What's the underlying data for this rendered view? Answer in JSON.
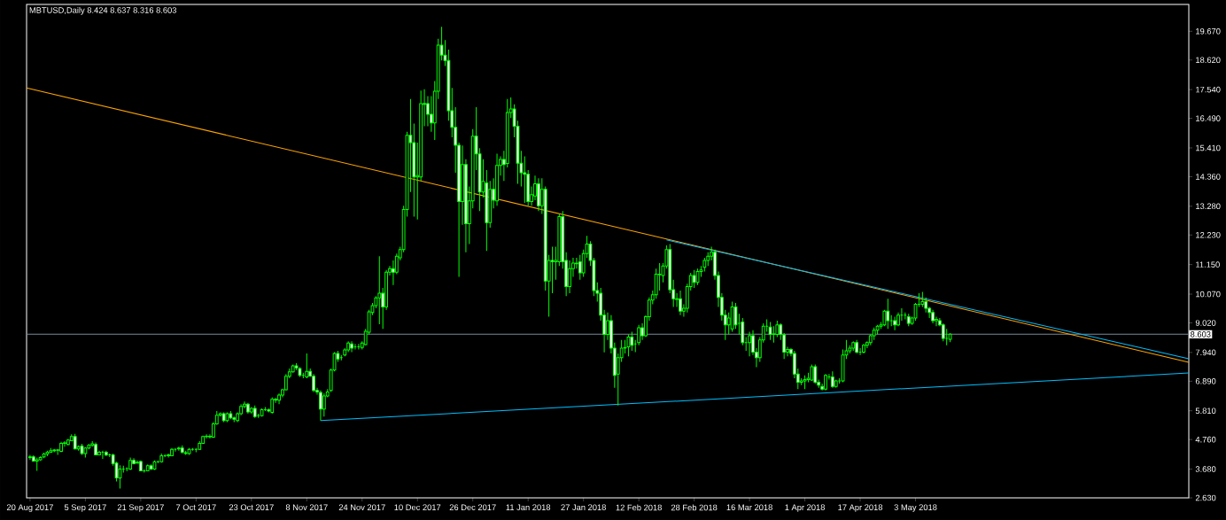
{
  "chart_data": {
    "type": "candlestick",
    "title": "MBTUSD,Daily  8.424 8.637 8.316 8.603",
    "color": "#00ff00",
    "xlim": [
      "2017-08-19",
      "2018-07-21"
    ],
    "ylim": [
      2.63,
      20.65
    ],
    "xticks": [
      {
        "value": "2017-08-20",
        "label": "20 Aug 2017"
      },
      {
        "value": "2017-09-05",
        "label": "5 Sep 2017"
      },
      {
        "value": "2017-09-21",
        "label": "21 Sep 2017"
      },
      {
        "value": "2017-10-07",
        "label": "7 Oct 2017"
      },
      {
        "value": "2017-10-23",
        "label": "23 Oct 2017"
      },
      {
        "value": "2017-11-08",
        "label": "8 Nov 2017"
      },
      {
        "value": "2017-11-24",
        "label": "24 Nov 2017"
      },
      {
        "value": "2017-12-10",
        "label": "10 Dec 2017"
      },
      {
        "value": "2017-12-26",
        "label": "26 Dec 2017"
      },
      {
        "value": "2018-01-11",
        "label": "11 Jan 2018"
      },
      {
        "value": "2018-01-27",
        "label": "27 Jan 2018"
      },
      {
        "value": "2018-02-12",
        "label": "12 Feb 2018"
      },
      {
        "value": "2018-02-28",
        "label": "28 Feb 2018"
      },
      {
        "value": "2018-03-16",
        "label": "16 Mar 2018"
      },
      {
        "value": "2018-04-01",
        "label": "1 Apr 2018"
      },
      {
        "value": "2018-04-17",
        "label": "17 Apr 2018"
      },
      {
        "value": "2018-05-03",
        "label": "3 May 2018"
      }
    ],
    "yticks": [
      {
        "value": 2.63,
        "label": "2.630"
      },
      {
        "value": 3.68,
        "label": "3.680"
      },
      {
        "value": 4.76,
        "label": "4.760"
      },
      {
        "value": 5.81,
        "label": "5.810"
      },
      {
        "value": 6.89,
        "label": "6.890"
      },
      {
        "value": 7.94,
        "label": "7.940"
      },
      {
        "value": 9.02,
        "label": "9.020"
      },
      {
        "value": 10.07,
        "label": "10.070"
      },
      {
        "value": 11.15,
        "label": "11.150"
      },
      {
        "value": 12.23,
        "label": "12.230"
      },
      {
        "value": 13.28,
        "label": "13.280"
      },
      {
        "value": 14.36,
        "label": "14.360"
      },
      {
        "value": 15.41,
        "label": "15.410"
      },
      {
        "value": 16.49,
        "label": "16.490"
      },
      {
        "value": 17.54,
        "label": "17.540"
      },
      {
        "value": 18.62,
        "label": "18.620"
      },
      {
        "value": 19.67,
        "label": "19.670"
      }
    ],
    "ref_lines": [
      {
        "axis": "y",
        "value": 8.603,
        "label": "8.603",
        "color": "#778899"
      }
    ],
    "series": [
      {
        "type": "line",
        "color": "#ffa500",
        "x": [
          "2017-08-19",
          "2018-07-21"
        ],
        "values": [
          17.6,
          7.58
        ]
      },
      {
        "type": "line",
        "color": "#00bfff",
        "x": [
          "2018-02-20",
          "2018-07-21"
        ],
        "values": [
          12.05,
          7.71
        ]
      },
      {
        "type": "line",
        "color": "#00bfff",
        "x": [
          "2017-11-12",
          "2018-07-21"
        ],
        "values": [
          5.45,
          7.19
        ]
      }
    ],
    "x": [
      "2017-08-20",
      "2017-08-21",
      "2017-08-22",
      "2017-08-23",
      "2017-08-24",
      "2017-08-25",
      "2017-08-26",
      "2017-08-27",
      "2017-08-28",
      "2017-08-29",
      "2017-08-30",
      "2017-08-31",
      "2017-09-01",
      "2017-09-02",
      "2017-09-03",
      "2017-09-04",
      "2017-09-05",
      "2017-09-06",
      "2017-09-07",
      "2017-09-08",
      "2017-09-09",
      "2017-09-10",
      "2017-09-11",
      "2017-09-12",
      "2017-09-13",
      "2017-09-14",
      "2017-09-15",
      "2017-09-16",
      "2017-09-17",
      "2017-09-18",
      "2017-09-19",
      "2017-09-20",
      "2017-09-21",
      "2017-09-22",
      "2017-09-23",
      "2017-09-24",
      "2017-09-25",
      "2017-09-26",
      "2017-09-27",
      "2017-09-28",
      "2017-09-29",
      "2017-09-30",
      "2017-10-01",
      "2017-10-02",
      "2017-10-03",
      "2017-10-04",
      "2017-10-05",
      "2017-10-06",
      "2017-10-07",
      "2017-10-08",
      "2017-10-09",
      "2017-10-10",
      "2017-10-11",
      "2017-10-12",
      "2017-10-13",
      "2017-10-14",
      "2017-10-15",
      "2017-10-16",
      "2017-10-17",
      "2017-10-18",
      "2017-10-19",
      "2017-10-20",
      "2017-10-21",
      "2017-10-22",
      "2017-10-23",
      "2017-10-24",
      "2017-10-25",
      "2017-10-26",
      "2017-10-27",
      "2017-10-28",
      "2017-10-29",
      "2017-10-30",
      "2017-10-31",
      "2017-11-01",
      "2017-11-02",
      "2017-11-03",
      "2017-11-04",
      "2017-11-05",
      "2017-11-06",
      "2017-11-07",
      "2017-11-08",
      "2017-11-09",
      "2017-11-10",
      "2017-11-11",
      "2017-11-12",
      "2017-11-13",
      "2017-11-14",
      "2017-11-15",
      "2017-11-16",
      "2017-11-17",
      "2017-11-18",
      "2017-11-19",
      "2017-11-20",
      "2017-11-21",
      "2017-11-22",
      "2017-11-23",
      "2017-11-24",
      "2017-11-25",
      "2017-11-26",
      "2017-11-27",
      "2017-11-28",
      "2017-11-29",
      "2017-11-30",
      "2017-12-01",
      "2017-12-02",
      "2017-12-03",
      "2017-12-04",
      "2017-12-05",
      "2017-12-06",
      "2017-12-07",
      "2017-12-08",
      "2017-12-09",
      "2017-12-10",
      "2017-12-11",
      "2017-12-12",
      "2017-12-13",
      "2017-12-14",
      "2017-12-15",
      "2017-12-16",
      "2017-12-17",
      "2017-12-18",
      "2017-12-19",
      "2017-12-20",
      "2017-12-21",
      "2017-12-22",
      "2017-12-23",
      "2017-12-24",
      "2017-12-25",
      "2017-12-26",
      "2017-12-27",
      "2017-12-28",
      "2017-12-29",
      "2017-12-30",
      "2017-12-31",
      "2018-01-01",
      "2018-01-02",
      "2018-01-03",
      "2018-01-04",
      "2018-01-05",
      "2018-01-06",
      "2018-01-07",
      "2018-01-08",
      "2018-01-09",
      "2018-01-10",
      "2018-01-11",
      "2018-01-12",
      "2018-01-13",
      "2018-01-14",
      "2018-01-15",
      "2018-01-16",
      "2018-01-17",
      "2018-01-18",
      "2018-01-19",
      "2018-01-20",
      "2018-01-21",
      "2018-01-22",
      "2018-01-23",
      "2018-01-24",
      "2018-01-25",
      "2018-01-26",
      "2018-01-27",
      "2018-01-28",
      "2018-01-29",
      "2018-01-30",
      "2018-01-31",
      "2018-02-01",
      "2018-02-02",
      "2018-02-03",
      "2018-02-04",
      "2018-02-05",
      "2018-02-06",
      "2018-02-07",
      "2018-02-08",
      "2018-02-09",
      "2018-02-10",
      "2018-02-11",
      "2018-02-12",
      "2018-02-13",
      "2018-02-14",
      "2018-02-15",
      "2018-02-16",
      "2018-02-17",
      "2018-02-18",
      "2018-02-19",
      "2018-02-20",
      "2018-02-21",
      "2018-02-22",
      "2018-02-23",
      "2018-02-24",
      "2018-02-25",
      "2018-02-26",
      "2018-02-27",
      "2018-02-28",
      "2018-03-01",
      "2018-03-02",
      "2018-03-03",
      "2018-03-04",
      "2018-03-05",
      "2018-03-06",
      "2018-03-07",
      "2018-03-08",
      "2018-03-09",
      "2018-03-10",
      "2018-03-11",
      "2018-03-12",
      "2018-03-13",
      "2018-03-14",
      "2018-03-15",
      "2018-03-16",
      "2018-03-17",
      "2018-03-18",
      "2018-03-19",
      "2018-03-20",
      "2018-03-21",
      "2018-03-22",
      "2018-03-23",
      "2018-03-24",
      "2018-03-25",
      "2018-03-26",
      "2018-03-27",
      "2018-03-28",
      "2018-03-29",
      "2018-03-30",
      "2018-03-31",
      "2018-04-01",
      "2018-04-02",
      "2018-04-03",
      "2018-04-04",
      "2018-04-05",
      "2018-04-06",
      "2018-04-07",
      "2018-04-08",
      "2018-04-09",
      "2018-04-10",
      "2018-04-11",
      "2018-04-12",
      "2018-04-13",
      "2018-04-14",
      "2018-04-15",
      "2018-04-16",
      "2018-04-17",
      "2018-04-18",
      "2018-04-19",
      "2018-04-20",
      "2018-04-21",
      "2018-04-22",
      "2018-04-23",
      "2018-04-24",
      "2018-04-25",
      "2018-04-26",
      "2018-04-27",
      "2018-04-28",
      "2018-04-29",
      "2018-04-30",
      "2018-05-01",
      "2018-05-02",
      "2018-05-03",
      "2018-05-04",
      "2018-05-05",
      "2018-05-06",
      "2018-05-07",
      "2018-05-08",
      "2018-05-09",
      "2018-05-10",
      "2018-05-11",
      "2018-05-12",
      "2018-05-13"
    ],
    "ohlc": [
      [
        4.1,
        4.2,
        4.02,
        4.13
      ],
      [
        4.13,
        4.18,
        3.95,
        3.97
      ],
      [
        3.97,
        4.1,
        3.62,
        4.02
      ],
      [
        4.02,
        4.15,
        3.98,
        4.1
      ],
      [
        4.13,
        4.28,
        4.08,
        4.23
      ],
      [
        4.23,
        4.35,
        4.15,
        4.3
      ],
      [
        4.3,
        4.45,
        4.28,
        4.35
      ],
      [
        4.35,
        4.42,
        4.3,
        4.38
      ],
      [
        4.38,
        4.42,
        4.2,
        4.37
      ],
      [
        4.33,
        4.68,
        4.3,
        4.62
      ],
      [
        4.62,
        4.7,
        4.5,
        4.64
      ],
      [
        4.58,
        4.78,
        4.55,
        4.74
      ],
      [
        4.72,
        4.95,
        4.7,
        4.87
      ],
      [
        4.87,
        4.97,
        4.4,
        4.42
      ],
      [
        4.42,
        4.55,
        4.35,
        4.5
      ],
      [
        4.52,
        4.6,
        4.2,
        4.25
      ],
      [
        4.25,
        4.48,
        4.1,
        4.45
      ],
      [
        4.45,
        4.6,
        4.4,
        4.55
      ],
      [
        4.55,
        4.7,
        4.5,
        4.6
      ],
      [
        4.58,
        4.65,
        4.2,
        4.2
      ],
      [
        4.2,
        4.35,
        4.18,
        4.3
      ],
      [
        4.3,
        4.35,
        4.05,
        4.3
      ],
      [
        4.3,
        4.35,
        4.15,
        4.2
      ],
      [
        4.2,
        4.25,
        4.12,
        4.2
      ],
      [
        4.2,
        4.25,
        3.8,
        3.88
      ],
      [
        3.9,
        3.95,
        3.23,
        3.36
      ],
      [
        3.36,
        3.82,
        2.97,
        3.68
      ],
      [
        3.68,
        3.8,
        3.55,
        3.68
      ],
      [
        3.7,
        3.75,
        3.6,
        3.7
      ],
      [
        3.68,
        4.1,
        3.65,
        4.0
      ],
      [
        4.0,
        4.08,
        3.85,
        3.88
      ],
      [
        3.9,
        4.0,
        3.88,
        3.93
      ],
      [
        3.96,
        4.0,
        3.6,
        3.62
      ],
      [
        3.62,
        3.68,
        3.55,
        3.62
      ],
      [
        3.62,
        3.85,
        3.6,
        3.8
      ],
      [
        3.8,
        3.85,
        3.65,
        3.68
      ],
      [
        3.68,
        4.0,
        3.65,
        3.95
      ],
      [
        3.95,
        4.0,
        3.9,
        3.95
      ],
      [
        3.95,
        4.25,
        3.92,
        4.17
      ],
      [
        4.17,
        4.22,
        4.12,
        4.17
      ],
      [
        4.17,
        4.25,
        4.1,
        4.2
      ],
      [
        4.17,
        4.45,
        4.15,
        4.4
      ],
      [
        4.4,
        4.45,
        4.32,
        4.4
      ],
      [
        4.42,
        4.5,
        4.35,
        4.45
      ],
      [
        4.45,
        4.55,
        4.25,
        4.3
      ],
      [
        4.28,
        4.35,
        4.2,
        4.25
      ],
      [
        4.25,
        4.45,
        4.2,
        4.4
      ],
      [
        4.4,
        4.45,
        4.35,
        4.4
      ],
      [
        4.4,
        4.45,
        4.3,
        4.4
      ],
      [
        4.4,
        4.7,
        4.38,
        4.62
      ],
      [
        4.62,
        4.9,
        4.6,
        4.87
      ],
      [
        4.87,
        4.95,
        4.8,
        4.88
      ],
      [
        4.88,
        4.95,
        4.8,
        4.86
      ],
      [
        4.85,
        5.4,
        4.82,
        5.33
      ],
      [
        5.33,
        5.8,
        5.3,
        5.65
      ],
      [
        5.65,
        5.75,
        5.6,
        5.7
      ],
      [
        5.7,
        5.75,
        5.4,
        5.45
      ],
      [
        5.45,
        5.75,
        5.4,
        5.7
      ],
      [
        5.7,
        5.8,
        5.5,
        5.55
      ],
      [
        5.55,
        5.6,
        5.4,
        5.5
      ],
      [
        5.45,
        5.75,
        5.4,
        5.7
      ],
      [
        5.7,
        6.05,
        5.65,
        5.97
      ],
      [
        5.97,
        6.15,
        5.9,
        6.05
      ],
      [
        6.05,
        6.1,
        5.7,
        5.77
      ],
      [
        5.77,
        5.95,
        5.7,
        5.9
      ],
      [
        5.9,
        6.0,
        5.55,
        5.6
      ],
      [
        5.63,
        5.7,
        5.55,
        5.63
      ],
      [
        5.63,
        5.9,
        5.6,
        5.85
      ],
      [
        5.85,
        5.95,
        5.8,
        5.85
      ],
      [
        5.85,
        5.9,
        5.75,
        5.8
      ],
      [
        5.75,
        6.3,
        5.7,
        6.23
      ],
      [
        6.23,
        6.28,
        6.1,
        6.2
      ],
      [
        6.2,
        6.45,
        6.05,
        6.38
      ],
      [
        6.38,
        6.62,
        6.3,
        6.58
      ],
      [
        6.58,
        7.15,
        6.55,
        7.07
      ],
      [
        7.07,
        7.35,
        7.0,
        7.23
      ],
      [
        7.23,
        7.5,
        7.2,
        7.45
      ],
      [
        7.45,
        7.55,
        7.3,
        7.38
      ],
      [
        7.35,
        7.4,
        7.05,
        7.1
      ],
      [
        7.1,
        7.2,
        7.0,
        7.1
      ],
      [
        7.05,
        7.9,
        7.0,
        7.25
      ],
      [
        7.25,
        7.35,
        7.05,
        7.08
      ],
      [
        7.07,
        7.15,
        6.5,
        6.55
      ],
      [
        6.55,
        6.65,
        6.4,
        6.5
      ],
      [
        6.48,
        6.55,
        5.45,
        5.87
      ],
      [
        5.87,
        6.45,
        5.6,
        6.35
      ],
      [
        6.35,
        6.6,
        6.3,
        6.5
      ],
      [
        6.55,
        7.35,
        6.5,
        7.3
      ],
      [
        7.3,
        7.95,
        7.25,
        7.9
      ],
      [
        7.9,
        8.0,
        7.6,
        7.7
      ],
      [
        7.75,
        7.85,
        7.65,
        7.75
      ],
      [
        7.85,
        8.1,
        7.8,
        8.03
      ],
      [
        8.03,
        8.35,
        7.95,
        8.28
      ],
      [
        8.25,
        8.35,
        7.95,
        8.1
      ],
      [
        8.15,
        8.25,
        8.05,
        8.15
      ],
      [
        8.15,
        8.25,
        8.05,
        8.15
      ],
      [
        8.12,
        8.35,
        8.05,
        8.28
      ],
      [
        8.23,
        8.8,
        8.2,
        8.71
      ],
      [
        8.68,
        9.5,
        8.6,
        9.42
      ],
      [
        9.4,
        9.75,
        9.3,
        9.65
      ],
      [
        9.65,
        10.0,
        9.55,
        9.93
      ],
      [
        9.93,
        11.45,
        8.97,
        10.1
      ],
      [
        10.1,
        10.3,
        8.8,
        9.6
      ],
      [
        9.6,
        10.95,
        9.5,
        10.87
      ],
      [
        10.87,
        11.1,
        10.75,
        11.0
      ],
      [
        11.0,
        11.3,
        10.4,
        10.87
      ],
      [
        10.87,
        11.55,
        10.8,
        11.45
      ],
      [
        11.4,
        11.8,
        11.3,
        11.7
      ],
      [
        11.7,
        13.3,
        11.6,
        13.16
      ],
      [
        13.16,
        16.0,
        12.9,
        15.87
      ],
      [
        15.87,
        17.2,
        13.8,
        15.6
      ],
      [
        15.6,
        16.3,
        12.9,
        14.35
      ],
      [
        14.35,
        15.6,
        12.8,
        14.4
      ],
      [
        14.35,
        17.5,
        14.2,
        17.03
      ],
      [
        17.03,
        17.55,
        16.2,
        17.0
      ],
      [
        17.03,
        17.3,
        16.2,
        16.64
      ],
      [
        16.64,
        17.3,
        16.0,
        16.32
      ],
      [
        16.32,
        17.85,
        15.7,
        17.48
      ],
      [
        17.48,
        19.4,
        17.2,
        19.16
      ],
      [
        19.16,
        19.83,
        18.6,
        18.8
      ],
      [
        18.8,
        19.35,
        18.4,
        18.6
      ],
      [
        18.6,
        19.0,
        16.4,
        16.77
      ],
      [
        16.77,
        17.6,
        15.8,
        16.16
      ],
      [
        16.16,
        16.9,
        14.5,
        15.51
      ],
      [
        15.51,
        15.6,
        10.7,
        13.45
      ],
      [
        13.45,
        15.5,
        12.6,
        14.8
      ],
      [
        14.8,
        15.0,
        11.6,
        12.64
      ],
      [
        12.64,
        14.0,
        11.9,
        13.48
      ],
      [
        13.48,
        16.1,
        13.2,
        15.84
      ],
      [
        15.84,
        16.9,
        14.6,
        15.19
      ],
      [
        15.19,
        15.4,
        13.1,
        13.8
      ],
      [
        13.8,
        15.0,
        13.6,
        14.19
      ],
      [
        14.13,
        14.6,
        11.65,
        12.68
      ],
      [
        12.68,
        14.2,
        12.5,
        13.9
      ],
      [
        13.9,
        14.3,
        13.2,
        13.5
      ],
      [
        13.48,
        15.2,
        13.3,
        14.77
      ],
      [
        14.77,
        15.1,
        14.4,
        14.99
      ],
      [
        14.99,
        15.3,
        14.2,
        14.8
      ],
      [
        14.84,
        17.2,
        14.7,
        16.7
      ],
      [
        16.7,
        17.25,
        16.5,
        16.83
      ],
      [
        16.83,
        17.0,
        15.8,
        16.2
      ],
      [
        16.2,
        16.4,
        14.1,
        14.85
      ],
      [
        14.85,
        15.3,
        14.0,
        14.5
      ],
      [
        14.5,
        15.1,
        13.4,
        14.45
      ],
      [
        14.45,
        14.6,
        13.3,
        13.45
      ],
      [
        13.45,
        14.0,
        13.3,
        13.7
      ],
      [
        13.65,
        14.4,
        13.5,
        14.1
      ],
      [
        14.1,
        14.3,
        13.1,
        13.3
      ],
      [
        13.3,
        14.3,
        13.0,
        13.9
      ],
      [
        13.9,
        14.0,
        10.2,
        10.55
      ],
      [
        10.55,
        11.5,
        9.25,
        11.3
      ],
      [
        11.3,
        11.8,
        10.1,
        11.25
      ],
      [
        11.25,
        11.8,
        10.6,
        11.3
      ],
      [
        11.25,
        13.0,
        11.1,
        12.9
      ],
      [
        12.9,
        13.1,
        11.0,
        11.25
      ],
      [
        11.3,
        11.6,
        10.0,
        10.35
      ],
      [
        10.35,
        11.3,
        10.1,
        11.0
      ],
      [
        11.0,
        11.4,
        10.7,
        11.2
      ],
      [
        11.2,
        11.4,
        11.0,
        11.18
      ],
      [
        11.25,
        11.5,
        10.6,
        10.85
      ],
      [
        10.85,
        11.7,
        10.7,
        11.55
      ],
      [
        11.55,
        12.2,
        11.4,
        11.9
      ],
      [
        11.9,
        12.0,
        11.1,
        11.3
      ],
      [
        11.3,
        11.4,
        10.0,
        10.2
      ],
      [
        10.2,
        10.5,
        9.8,
        10.1
      ],
      [
        10.1,
        10.3,
        9.1,
        9.3
      ],
      [
        9.3,
        9.5,
        7.94,
        8.6
      ],
      [
        8.6,
        9.4,
        8.4,
        9.1
      ],
      [
        9.1,
        9.3,
        7.9,
        8.1
      ],
      [
        8.1,
        8.3,
        6.65,
        7.1
      ],
      [
        7.15,
        7.9,
        6.0,
        7.75
      ],
      [
        7.75,
        8.4,
        7.6,
        8.1
      ],
      [
        8.1,
        8.4,
        7.9,
        8.12
      ],
      [
        8.15,
        8.6,
        7.8,
        8.5
      ],
      [
        8.5,
        8.7,
        8.0,
        8.2
      ],
      [
        8.25,
        8.4,
        7.95,
        8.25
      ],
      [
        8.3,
        8.95,
        8.2,
        8.84
      ],
      [
        8.84,
        9.0,
        8.4,
        8.55
      ],
      [
        8.55,
        9.3,
        8.5,
        9.25
      ],
      [
        9.25,
        9.95,
        9.1,
        9.85
      ],
      [
        9.85,
        10.2,
        9.7,
        10.05
      ],
      [
        10.05,
        11.0,
        9.9,
        10.8
      ],
      [
        10.8,
        11.2,
        10.2,
        10.78
      ],
      [
        10.75,
        11.2,
        10.5,
        11.1
      ],
      [
        11.1,
        11.85,
        11.0,
        11.7
      ],
      [
        11.7,
        11.9,
        10.1,
        10.23
      ],
      [
        10.23,
        10.6,
        9.6,
        9.9
      ],
      [
        9.9,
        10.1,
        9.6,
        9.88
      ],
      [
        9.9,
        10.2,
        9.3,
        9.45
      ],
      [
        9.45,
        9.7,
        9.25,
        9.55
      ],
      [
        9.55,
        10.45,
        9.4,
        10.35
      ],
      [
        10.35,
        10.85,
        10.2,
        10.75
      ],
      [
        10.75,
        10.95,
        10.3,
        10.5
      ],
      [
        10.5,
        11.0,
        10.4,
        10.9
      ],
      [
        10.9,
        11.1,
        10.7,
        10.95
      ],
      [
        11.05,
        11.4,
        10.9,
        11.3
      ],
      [
        11.3,
        11.6,
        11.1,
        11.45
      ],
      [
        11.45,
        11.8,
        11.3,
        11.6
      ],
      [
        11.6,
        11.7,
        10.6,
        10.75
      ],
      [
        10.75,
        10.9,
        9.6,
        9.95
      ],
      [
        9.95,
        10.1,
        9.1,
        9.3
      ],
      [
        9.3,
        9.5,
        8.4,
        8.95
      ],
      [
        8.95,
        9.4,
        8.6,
        9.2
      ],
      [
        8.8,
        9.8,
        8.7,
        9.6
      ],
      [
        9.6,
        9.75,
        8.8,
        8.95
      ],
      [
        9.0,
        9.35,
        8.6,
        9.0
      ],
      [
        9.05,
        9.2,
        8.2,
        8.3
      ],
      [
        8.3,
        8.5,
        8.0,
        8.3
      ],
      [
        8.3,
        8.7,
        7.8,
        8.55
      ],
      [
        8.55,
        8.75,
        7.85,
        7.95
      ],
      [
        7.95,
        8.1,
        7.4,
        7.75
      ],
      [
        7.75,
        8.5,
        7.6,
        8.4
      ],
      [
        8.4,
        9.0,
        8.3,
        8.9
      ],
      [
        8.9,
        9.15,
        8.7,
        8.9
      ],
      [
        8.87,
        9.05,
        8.4,
        8.6
      ],
      [
        8.6,
        8.9,
        8.3,
        8.62
      ],
      [
        8.6,
        9.1,
        8.5,
        8.95
      ],
      [
        8.95,
        9.0,
        8.4,
        8.6
      ],
      [
        8.58,
        8.65,
        7.7,
        7.95
      ],
      [
        7.95,
        8.15,
        7.8,
        8.05
      ],
      [
        8.05,
        8.1,
        7.8,
        7.9
      ],
      [
        7.9,
        8.0,
        7.0,
        7.15
      ],
      [
        7.15,
        7.35,
        6.6,
        6.85
      ],
      [
        6.85,
        7.0,
        6.75,
        6.9
      ],
      [
        6.9,
        7.1,
        6.6,
        6.95
      ],
      [
        6.95,
        7.2,
        6.85,
        7.0
      ],
      [
        6.93,
        7.5,
        6.9,
        7.42
      ],
      [
        7.42,
        7.5,
        6.8,
        6.85
      ],
      [
        6.85,
        6.95,
        6.65,
        6.75
      ],
      [
        6.7,
        6.8,
        6.55,
        6.6
      ],
      [
        6.6,
        7.15,
        6.55,
        7.1
      ],
      [
        7.05,
        7.15,
        6.95,
        7.05
      ],
      [
        7.05,
        7.25,
        6.65,
        6.7
      ],
      [
        6.7,
        6.95,
        6.65,
        6.9
      ],
      [
        6.9,
        7.0,
        6.8,
        6.9
      ],
      [
        6.9,
        8.05,
        6.85,
        7.85
      ],
      [
        7.85,
        8.4,
        7.7,
        8.0
      ],
      [
        8.0,
        8.2,
        7.9,
        8.1
      ],
      [
        8.1,
        8.35,
        8.0,
        8.3
      ],
      [
        8.3,
        8.4,
        7.9,
        7.95
      ],
      [
        7.95,
        8.1,
        7.85,
        7.95
      ],
      [
        7.95,
        8.25,
        7.9,
        8.2
      ],
      [
        8.2,
        8.35,
        8.1,
        8.3
      ],
      [
        8.3,
        8.6,
        8.2,
        8.55
      ],
      [
        8.55,
        8.85,
        8.4,
        8.75
      ],
      [
        8.75,
        8.95,
        8.6,
        8.9
      ],
      [
        8.9,
        9.05,
        8.8,
        8.95
      ],
      [
        8.95,
        9.5,
        8.9,
        9.45
      ],
      [
        9.45,
        9.9,
        8.8,
        9.1
      ],
      [
        9.1,
        9.3,
        8.9,
        9.1
      ],
      [
        9.1,
        9.25,
        8.75,
        8.95
      ],
      [
        8.95,
        9.4,
        8.9,
        9.3
      ],
      [
        9.3,
        9.55,
        9.1,
        9.3
      ],
      [
        9.3,
        9.4,
        9.15,
        9.3
      ],
      [
        9.25,
        9.35,
        8.9,
        9.0
      ],
      [
        9.0,
        9.25,
        8.95,
        9.2
      ],
      [
        9.2,
        9.75,
        9.1,
        9.7
      ],
      [
        9.7,
        10.1,
        9.6,
        9.7
      ],
      [
        9.7,
        10.15,
        9.6,
        9.8
      ],
      [
        9.8,
        9.95,
        9.4,
        9.55
      ],
      [
        9.55,
        9.6,
        9.2,
        9.4
      ],
      [
        9.4,
        9.5,
        9.0,
        9.1
      ],
      [
        9.1,
        9.25,
        8.9,
        9.15
      ],
      [
        9.1,
        9.2,
        8.9,
        8.95
      ],
      [
        8.95,
        9.0,
        8.35,
        8.45
      ],
      [
        8.45,
        8.8,
        8.2,
        8.45
      ],
      [
        8.424,
        8.637,
        8.316,
        8.603
      ]
    ]
  }
}
